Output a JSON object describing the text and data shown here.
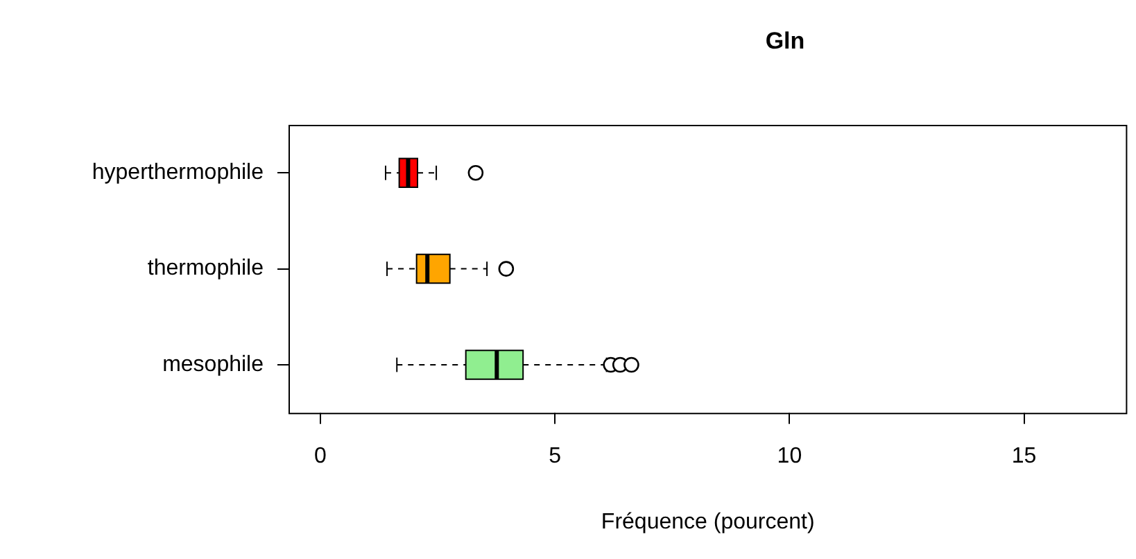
{
  "chart_data": {
    "type": "box",
    "title": "Gln",
    "xlabel": "Fréquence (pourcent)",
    "orientation": "horizontal",
    "categories": [
      "hyperthermophile",
      "thermophile",
      "mesophile"
    ],
    "colors": [
      "#ff0000",
      "#ffa500",
      "#90ee90"
    ],
    "boxes": [
      {
        "low": 1.39,
        "q1": 1.68,
        "median": 1.87,
        "q3": 2.07,
        "high": 2.47,
        "outliers": [
          3.31
        ]
      },
      {
        "low": 1.42,
        "q1": 2.05,
        "median": 2.28,
        "q3": 2.76,
        "high": 3.55,
        "outliers": [
          3.96
        ]
      },
      {
        "low": 1.63,
        "q1": 3.1,
        "median": 3.76,
        "q3": 4.32,
        "high": 6.1,
        "outliers": [
          6.19,
          6.39,
          6.63
        ]
      }
    ],
    "xlim": [
      -0.68,
      17.2
    ],
    "xticks": [
      0,
      5,
      10,
      15
    ],
    "grid": false,
    "legend": false
  }
}
